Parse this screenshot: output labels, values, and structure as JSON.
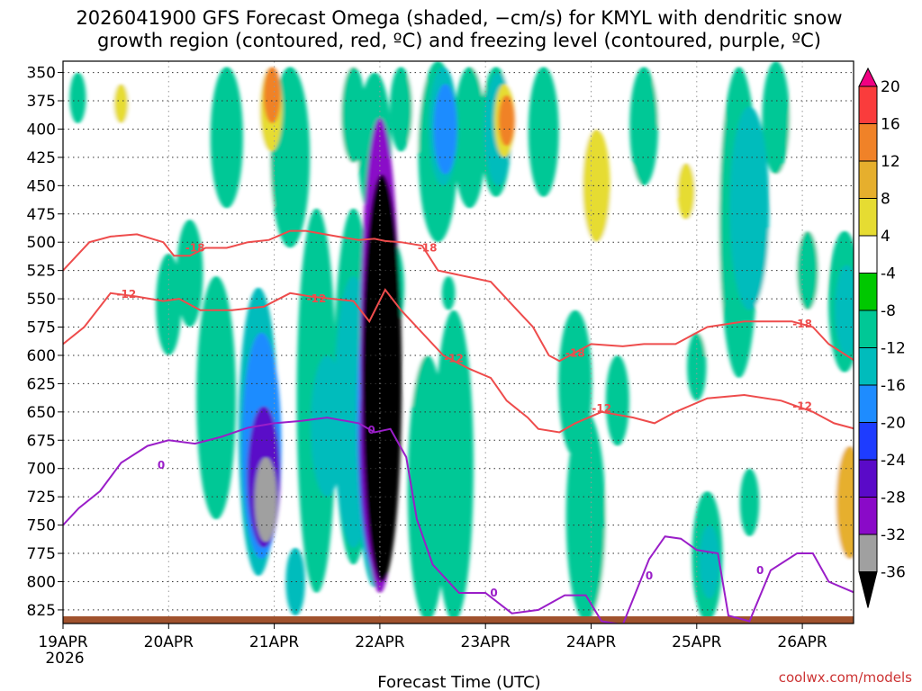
{
  "chart_data": {
    "type": "heatmap",
    "title_lines": [
      "2026041900 GFS Forecast Omega (shaded, −cm/s) for KMYL with dendritic snow",
      "growth region (contoured, red, ºC) and freezing level (contoured, purple, ºC)"
    ],
    "xlabel": "Forecast Time (UTC)",
    "ylabel": "",
    "credit": "coolwx.com/models",
    "x_ticks": [
      "19APR",
      "20APR",
      "21APR",
      "22APR",
      "23APR",
      "24APR",
      "25APR",
      "26APR"
    ],
    "x_sublabel": "2026",
    "x_range_days": [
      0,
      7.5
    ],
    "y_ticks": [
      350,
      375,
      400,
      425,
      450,
      475,
      500,
      525,
      550,
      575,
      600,
      625,
      650,
      675,
      700,
      725,
      750,
      775,
      800,
      825
    ],
    "y_range_hpa": [
      340,
      837
    ],
    "grid": true,
    "colorbar": {
      "levels": [
        "-36",
        "-32",
        "-28",
        "-24",
        "-20",
        "-16",
        "-12",
        "-8",
        "-4",
        "4",
        "8",
        "12",
        "16",
        "20"
      ],
      "colors": [
        "#000000",
        "#a0a0a0",
        "#8a0ac8",
        "#5a0ac8",
        "#1e3cff",
        "#1e8cff",
        "#00bcbc",
        "#00c896",
        "#00c800",
        "#ffffff",
        "#e6dc32",
        "#e6af2d",
        "#f08228",
        "#fa3c3c",
        "#f00082"
      ]
    },
    "omega_blobs": [
      {
        "day": 0.14,
        "p_top": 350,
        "p_bot": 395,
        "value": -5
      },
      {
        "day": 0.55,
        "p_top": 345,
        "p_bot": 415,
        "value": 5
      },
      {
        "day": 0.55,
        "p_top": 360,
        "p_bot": 395,
        "value": 9
      },
      {
        "day": 1.0,
        "p_top": 360,
        "p_bot": 435,
        "value": 5
      },
      {
        "day": 1.0,
        "p_top": 510,
        "p_bot": 600,
        "value": -6
      },
      {
        "day": 1.2,
        "p_top": 480,
        "p_bot": 575,
        "value": -5
      },
      {
        "day": 1.55,
        "p_top": 345,
        "p_bot": 470,
        "value": -5
      },
      {
        "day": 1.45,
        "p_top": 530,
        "p_bot": 745,
        "value": -6
      },
      {
        "day": 1.85,
        "p_top": 540,
        "p_bot": 795,
        "value": -9
      },
      {
        "day": 1.88,
        "p_top": 580,
        "p_bot": 780,
        "value": -14
      },
      {
        "day": 1.9,
        "p_top": 645,
        "p_bot": 770,
        "value": -22
      },
      {
        "day": 1.92,
        "p_top": 690,
        "p_bot": 765,
        "value": -29
      },
      {
        "day": 1.95,
        "p_top": 345,
        "p_bot": 470,
        "value": 5
      },
      {
        "day": 1.97,
        "p_top": 345,
        "p_bot": 420,
        "value": 10
      },
      {
        "day": 1.98,
        "p_top": 345,
        "p_bot": 395,
        "value": 17
      },
      {
        "day": 2.15,
        "p_top": 345,
        "p_bot": 505,
        "value": -6
      },
      {
        "day": 2.2,
        "p_top": 770,
        "p_bot": 830,
        "value": -10
      },
      {
        "day": 2.4,
        "p_top": 470,
        "p_bot": 810,
        "value": -6
      },
      {
        "day": 2.5,
        "p_top": 600,
        "p_bot": 725,
        "value": -10
      },
      {
        "day": 2.55,
        "p_top": 345,
        "p_bot": 450,
        "value": 5
      },
      {
        "day": 2.75,
        "p_top": 345,
        "p_bot": 430,
        "value": -6
      },
      {
        "day": 2.75,
        "p_top": 470,
        "p_bot": 785,
        "value": -7
      },
      {
        "day": 2.75,
        "p_top": 530,
        "p_bot": 770,
        "value": -12
      },
      {
        "day": 2.72,
        "p_top": 340,
        "p_bot": 440,
        "value": 5
      },
      {
        "day": 2.95,
        "p_top": 350,
        "p_bot": 480,
        "value": -6
      },
      {
        "day": 2.95,
        "p_top": 480,
        "p_bot": 805,
        "value": -9
      },
      {
        "day": 2.97,
        "p_top": 520,
        "p_bot": 795,
        "value": -15
      },
      {
        "day": 2.99,
        "p_top": 560,
        "p_bot": 795,
        "value": -23
      },
      {
        "day": 3.0,
        "p_top": 390,
        "p_bot": 810,
        "value": -28
      },
      {
        "day": 3.02,
        "p_top": 440,
        "p_bot": 800,
        "value": -38
      },
      {
        "day": 3.12,
        "p_top": 500,
        "p_bot": 580,
        "value": -6
      },
      {
        "day": 3.2,
        "p_top": 345,
        "p_bot": 420,
        "value": -6
      },
      {
        "day": 3.35,
        "p_top": 345,
        "p_bot": 420,
        "value": 5
      },
      {
        "day": 3.35,
        "p_top": 585,
        "p_bot": 650,
        "value": 5
      },
      {
        "day": 3.45,
        "p_top": 600,
        "p_bot": 835,
        "value": -6
      },
      {
        "day": 3.55,
        "p_top": 340,
        "p_bot": 500,
        "value": -6
      },
      {
        "day": 3.6,
        "p_top": 345,
        "p_bot": 450,
        "value": -10
      },
      {
        "day": 3.62,
        "p_top": 360,
        "p_bot": 440,
        "value": -16
      },
      {
        "day": 3.65,
        "p_top": 530,
        "p_bot": 560,
        "value": -6
      },
      {
        "day": 3.7,
        "p_top": 560,
        "p_bot": 835,
        "value": -6
      },
      {
        "day": 3.85,
        "p_top": 345,
        "p_bot": 470,
        "value": -6
      },
      {
        "day": 3.9,
        "p_top": 345,
        "p_bot": 410,
        "value": 5
      },
      {
        "day": 4.1,
        "p_top": 345,
        "p_bot": 460,
        "value": -6
      },
      {
        "day": 4.12,
        "p_top": 350,
        "p_bot": 450,
        "value": -10
      },
      {
        "day": 4.15,
        "p_top": 350,
        "p_bot": 440,
        "value": 5
      },
      {
        "day": 4.18,
        "p_top": 360,
        "p_bot": 425,
        "value": 10
      },
      {
        "day": 4.2,
        "p_top": 370,
        "p_bot": 415,
        "value": 17
      },
      {
        "day": 4.2,
        "p_top": 560,
        "p_bot": 675,
        "value": 5
      },
      {
        "day": 4.55,
        "p_top": 345,
        "p_bot": 460,
        "value": -6
      },
      {
        "day": 4.5,
        "p_top": 570,
        "p_bot": 665,
        "value": 5
      },
      {
        "day": 4.55,
        "p_top": 700,
        "p_bot": 760,
        "value": 5
      },
      {
        "day": 4.85,
        "p_top": 560,
        "p_bot": 690,
        "value": -6
      },
      {
        "day": 4.95,
        "p_top": 650,
        "p_bot": 835,
        "value": -6
      },
      {
        "day": 5.0,
        "p_top": 390,
        "p_bot": 560,
        "value": 5
      },
      {
        "day": 5.05,
        "p_top": 400,
        "p_bot": 500,
        "value": 10
      },
      {
        "day": 5.1,
        "p_top": 750,
        "p_bot": 835,
        "value": 5
      },
      {
        "day": 5.25,
        "p_top": 600,
        "p_bot": 680,
        "value": -6
      },
      {
        "day": 5.25,
        "p_top": 700,
        "p_bot": 770,
        "value": 5
      },
      {
        "day": 5.35,
        "p_top": 430,
        "p_bot": 540,
        "value": 5
      },
      {
        "day": 5.5,
        "p_top": 345,
        "p_bot": 450,
        "value": -6
      },
      {
        "day": 5.55,
        "p_top": 360,
        "p_bot": 420,
        "value": 5
      },
      {
        "day": 5.7,
        "p_top": 330,
        "p_bot": 400,
        "value": 5
      },
      {
        "day": 5.8,
        "p_top": 400,
        "p_bot": 460,
        "value": 5
      },
      {
        "day": 5.9,
        "p_top": 430,
        "p_bot": 480,
        "value": 10
      },
      {
        "day": 6.0,
        "p_top": 580,
        "p_bot": 640,
        "value": -6
      },
      {
        "day": 6.1,
        "p_top": 720,
        "p_bot": 835,
        "value": -6
      },
      {
        "day": 6.12,
        "p_top": 750,
        "p_bot": 815,
        "value": -10
      },
      {
        "day": 6.1,
        "p_top": 330,
        "p_bot": 600,
        "value": 5
      },
      {
        "day": 6.2,
        "p_top": 440,
        "p_bot": 490,
        "value": 5
      },
      {
        "day": 6.4,
        "p_top": 345,
        "p_bot": 620,
        "value": -6
      },
      {
        "day": 6.5,
        "p_top": 380,
        "p_bot": 560,
        "value": -10
      },
      {
        "day": 6.5,
        "p_top": 700,
        "p_bot": 760,
        "value": -6
      },
      {
        "day": 6.62,
        "p_top": 480,
        "p_bot": 560,
        "value": 5
      },
      {
        "day": 6.7,
        "p_top": 650,
        "p_bot": 700,
        "value": 5
      },
      {
        "day": 6.75,
        "p_top": 340,
        "p_bot": 440,
        "value": -6
      },
      {
        "day": 6.8,
        "p_top": 430,
        "p_bot": 480,
        "value": 5
      },
      {
        "day": 7.0,
        "p_top": 360,
        "p_bot": 460,
        "value": 5
      },
      {
        "day": 7.05,
        "p_top": 490,
        "p_bot": 560,
        "value": -6
      },
      {
        "day": 7.05,
        "p_top": 420,
        "p_bot": 580,
        "value": 5
      },
      {
        "day": 7.05,
        "p_top": 580,
        "p_bot": 660,
        "value": 5
      },
      {
        "day": 7.4,
        "p_top": 490,
        "p_bot": 615,
        "value": -6
      },
      {
        "day": 7.42,
        "p_top": 520,
        "p_bot": 600,
        "value": -10
      },
      {
        "day": 7.45,
        "p_top": 650,
        "p_bot": 800,
        "value": 5
      },
      {
        "day": 7.45,
        "p_top": 680,
        "p_bot": 780,
        "value": 13
      }
    ],
    "dgz_minus18": [
      [
        0,
        525
      ],
      [
        0.25,
        500
      ],
      [
        0.45,
        495
      ],
      [
        0.7,
        493
      ],
      [
        0.95,
        500
      ],
      [
        1.05,
        512
      ],
      [
        1.2,
        512
      ],
      [
        1.35,
        505
      ],
      [
        1.55,
        505
      ],
      [
        1.75,
        500
      ],
      [
        1.95,
        498
      ],
      [
        2.15,
        490
      ],
      [
        2.3,
        490
      ],
      [
        2.6,
        495
      ],
      [
        2.8,
        498
      ],
      [
        2.95,
        497
      ],
      [
        3.05,
        499
      ],
      [
        3.2,
        500
      ],
      [
        3.4,
        503
      ],
      [
        3.55,
        525
      ],
      [
        3.8,
        530
      ],
      [
        4.05,
        535
      ],
      [
        4.3,
        560
      ],
      [
        4.45,
        575
      ],
      [
        4.6,
        600
      ],
      [
        4.7,
        605
      ],
      [
        5.0,
        590
      ],
      [
        5.3,
        592
      ],
      [
        5.5,
        590
      ],
      [
        5.8,
        590
      ],
      [
        6.1,
        575
      ],
      [
        6.45,
        570
      ],
      [
        6.9,
        570
      ],
      [
        7.1,
        575
      ],
      [
        7.25,
        590
      ],
      [
        7.5,
        605
      ]
    ],
    "dgz_minus12": [
      [
        0,
        590
      ],
      [
        0.2,
        575
      ],
      [
        0.45,
        545
      ],
      [
        0.7,
        548
      ],
      [
        0.95,
        552
      ],
      [
        1.1,
        550
      ],
      [
        1.3,
        560
      ],
      [
        1.6,
        560
      ],
      [
        1.9,
        557
      ],
      [
        2.15,
        545
      ],
      [
        2.35,
        548
      ],
      [
        2.55,
        550
      ],
      [
        2.75,
        552
      ],
      [
        2.9,
        570
      ],
      [
        3.05,
        542
      ],
      [
        3.2,
        560
      ],
      [
        3.4,
        580
      ],
      [
        3.6,
        600
      ],
      [
        3.85,
        612
      ],
      [
        4.05,
        620
      ],
      [
        4.2,
        640
      ],
      [
        4.4,
        655
      ],
      [
        4.5,
        665
      ],
      [
        4.7,
        668
      ],
      [
        4.85,
        660
      ],
      [
        5.1,
        650
      ],
      [
        5.4,
        655
      ],
      [
        5.6,
        660
      ],
      [
        5.8,
        650
      ],
      [
        6.1,
        638
      ],
      [
        6.45,
        635
      ],
      [
        6.8,
        640
      ],
      [
        7.1,
        650
      ],
      [
        7.3,
        660
      ],
      [
        7.5,
        665
      ]
    ],
    "freezing_level": [
      [
        0,
        750
      ],
      [
        0.15,
        735
      ],
      [
        0.35,
        720
      ],
      [
        0.55,
        695
      ],
      [
        0.8,
        680
      ],
      [
        1.0,
        675
      ],
      [
        1.25,
        678
      ],
      [
        1.5,
        672
      ],
      [
        1.75,
        664
      ],
      [
        2.0,
        660
      ],
      [
        2.25,
        658
      ],
      [
        2.5,
        655
      ],
      [
        2.8,
        660
      ],
      [
        2.95,
        668
      ],
      [
        3.1,
        665
      ],
      [
        3.25,
        690
      ],
      [
        3.35,
        745
      ],
      [
        3.5,
        785
      ],
      [
        3.75,
        810
      ],
      [
        4.0,
        810
      ],
      [
        4.25,
        828
      ],
      [
        4.5,
        825
      ],
      [
        4.75,
        812
      ],
      [
        4.95,
        812
      ],
      [
        5.1,
        835
      ],
      [
        5.3,
        838
      ],
      [
        5.55,
        780
      ],
      [
        5.7,
        760
      ],
      [
        5.85,
        762
      ],
      [
        6.0,
        772
      ],
      [
        6.2,
        775
      ],
      [
        6.3,
        830
      ],
      [
        6.5,
        835
      ],
      [
        6.7,
        790
      ],
      [
        6.95,
        775
      ],
      [
        7.1,
        775
      ],
      [
        7.25,
        800
      ],
      [
        7.5,
        810
      ]
    ],
    "contour_labels": [
      {
        "text": "-18",
        "day": 1.25,
        "p": 505,
        "color": "red"
      },
      {
        "text": "-18",
        "day": 3.45,
        "p": 505,
        "color": "red"
      },
      {
        "text": "-18",
        "day": 4.85,
        "p": 598,
        "color": "red"
      },
      {
        "text": "-18",
        "day": 7.0,
        "p": 572,
        "color": "red"
      },
      {
        "text": "-12",
        "day": 0.6,
        "p": 546,
        "color": "red"
      },
      {
        "text": "-12",
        "day": 2.4,
        "p": 550,
        "color": "red"
      },
      {
        "text": "-12",
        "day": 3.7,
        "p": 603,
        "color": "red"
      },
      {
        "text": "-12",
        "day": 5.1,
        "p": 647,
        "color": "red"
      },
      {
        "text": "-12",
        "day": 7.0,
        "p": 645,
        "color": "red"
      },
      {
        "text": "0",
        "day": 0.93,
        "p": 697,
        "color": "purple"
      },
      {
        "text": "0",
        "day": 2.92,
        "p": 666,
        "color": "purple"
      },
      {
        "text": "0",
        "day": 4.08,
        "p": 810,
        "color": "purple"
      },
      {
        "text": "0",
        "day": 5.55,
        "p": 795,
        "color": "purple"
      },
      {
        "text": "0",
        "day": 6.6,
        "p": 790,
        "color": "purple"
      }
    ]
  }
}
